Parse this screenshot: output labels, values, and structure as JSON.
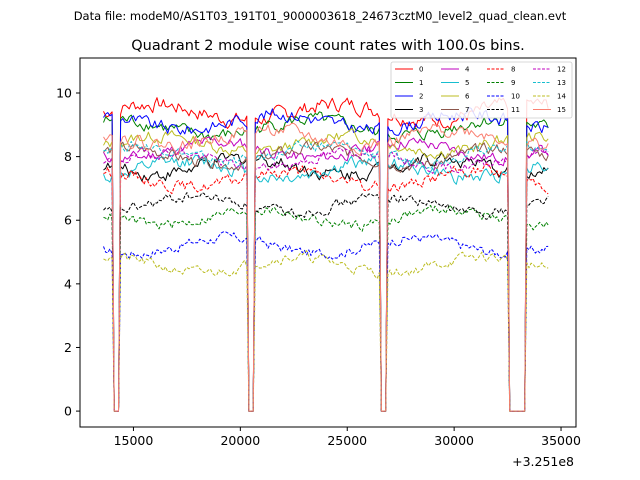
{
  "figure": {
    "suptitle": "Data file: modeM0/AS1T03_191T01_9000003618_24673cztM0_level2_quad_clean.evt"
  },
  "chart_data": {
    "type": "line",
    "title": "Quadrant 2 module wise count rates with 100.0s bins.",
    "xlabel": "",
    "ylabel": "",
    "x_offset_label": "+3.251e8",
    "xlim": [
      12500,
      35700
    ],
    "ylim": [
      -0.5,
      11.1
    ],
    "x_ticks": [
      15000,
      20000,
      25000,
      30000,
      35000
    ],
    "x_tick_labels": [
      "15000",
      "20000",
      "25000",
      "30000",
      "35000"
    ],
    "y_ticks": [
      0,
      2,
      4,
      6,
      8,
      10
    ],
    "y_tick_labels": [
      "0",
      "2",
      "4",
      "6",
      "8",
      "10"
    ],
    "legend_placement": "top-right",
    "legend_columns": 4,
    "x_start": 13600,
    "x_end": 34400,
    "bin_size": 100,
    "gaps": [
      [
        14100,
        14300
      ],
      [
        20350,
        20650
      ],
      [
        26550,
        26850
      ],
      [
        32600,
        33300
      ]
    ],
    "series": [
      {
        "name": "0",
        "color": "#ff0000",
        "dash": "solid",
        "level": 9.4,
        "spread": 0.45
      },
      {
        "name": "1",
        "color": "#008000",
        "dash": "solid",
        "level": 8.9,
        "spread": 0.4
      },
      {
        "name": "2",
        "color": "#0000ff",
        "dash": "solid",
        "level": 9.1,
        "spread": 0.4
      },
      {
        "name": "3",
        "color": "#000000",
        "dash": "solid",
        "level": 7.7,
        "spread": 0.4
      },
      {
        "name": "4",
        "color": "#bf00bf",
        "dash": "solid",
        "level": 8.2,
        "spread": 0.35
      },
      {
        "name": "5",
        "color": "#17becf",
        "dash": "solid",
        "level": 7.6,
        "spread": 0.4
      },
      {
        "name": "6",
        "color": "#bcbd22",
        "dash": "solid",
        "level": 8.4,
        "spread": 0.35
      },
      {
        "name": "7",
        "color": "#8c564b",
        "dash": "solid",
        "level": 8.0,
        "spread": 0.35
      },
      {
        "name": "8",
        "color": "#ff0000",
        "dash": "dashed",
        "level": 7.3,
        "spread": 0.35
      },
      {
        "name": "9",
        "color": "#008000",
        "dash": "dashed",
        "level": 6.1,
        "spread": 0.3
      },
      {
        "name": "10",
        "color": "#0000ff",
        "dash": "dashed",
        "level": 5.2,
        "spread": 0.3
      },
      {
        "name": "11",
        "color": "#000000",
        "dash": "dashed",
        "level": 6.5,
        "spread": 0.3
      },
      {
        "name": "12",
        "color": "#bf00bf",
        "dash": "dashed",
        "level": 7.9,
        "spread": 0.3
      },
      {
        "name": "13",
        "color": "#17becf",
        "dash": "dashed",
        "level": 8.1,
        "spread": 0.3
      },
      {
        "name": "14",
        "color": "#bcbd22",
        "dash": "dashed",
        "level": 4.6,
        "spread": 0.3
      },
      {
        "name": "15",
        "color": "#fa8072",
        "dash": "solid",
        "level": 8.6,
        "spread": 0.4
      }
    ]
  }
}
